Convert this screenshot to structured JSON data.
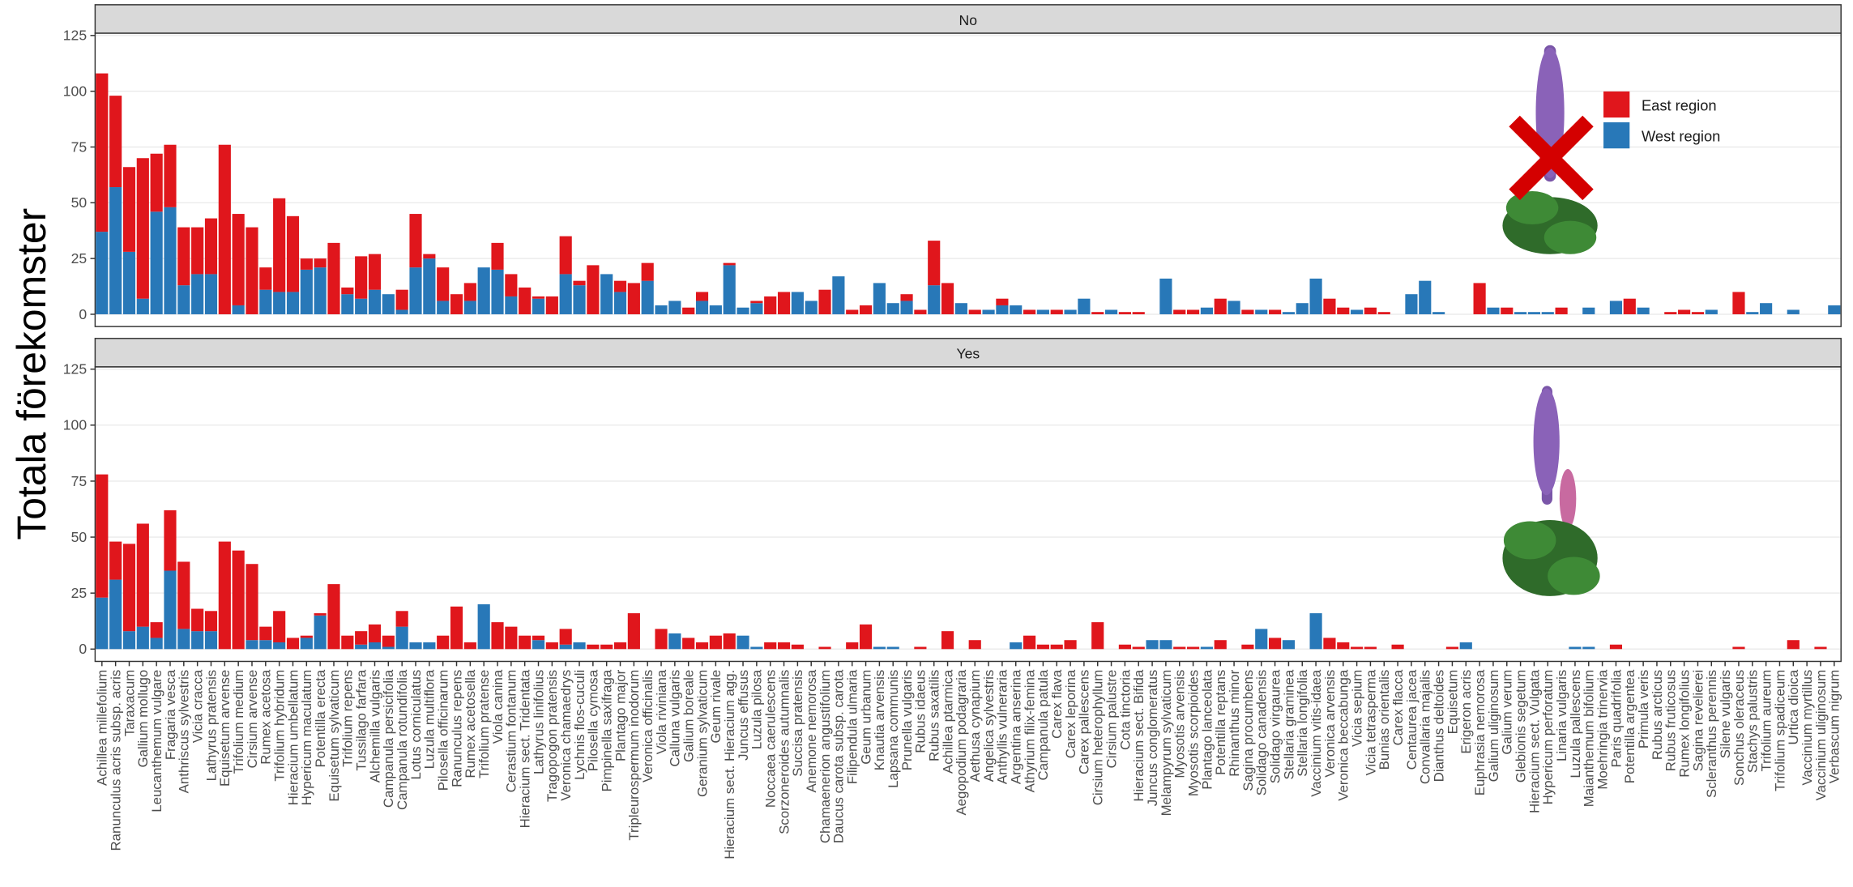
{
  "chart_data": {
    "type": "bar",
    "stacked": true,
    "y_label": "Totala förekomster",
    "categories": [
      "Achillea millefolium",
      "Ranunculus acris subsp. acris",
      "Taraxacum",
      "Gallium mollugo",
      "Leucanthemum vulgare",
      "Fragaria vesca",
      "Anthriscus sylvestris",
      "Vicia cracca",
      "Lathyrus pratensis",
      "Equisetum arvense",
      "Trifolium medium",
      "Cirsium arvense",
      "Rumex acetosa",
      "Trifolium hybridum",
      "Hieracium umbellatum",
      "Hypericum maculatum",
      "Potentilla erecta",
      "Equisetum sylvaticum",
      "Trifolium repens",
      "Tussilago farfara",
      "Alchemilla vulgaris",
      "Campanula persicifolia",
      "Campanula rotundifolia",
      "Lotus corniculatus",
      "Luzula multiflora",
      "Pilosella officinarum",
      "Ranunculus repens",
      "Rumex acetosella",
      "Trifolium pratense",
      "Viola canina",
      "Cerastium fontanum",
      "Hieracium sect. Tridentata",
      "Lathyrus linifolius",
      "Tragopogon pratensis",
      "Veronica chamaedrys",
      "Lychnis flos-cuculi",
      "Pilosella cymosa",
      "Pimpinella saxifraga",
      "Plantago major",
      "Tripleurospermum inodorum",
      "Veronica officinalis",
      "Viola riviniana",
      "Calluna vulgaris",
      "Galium boreale",
      "Geranium sylvaticum",
      "Geum rivale",
      "Hieracium sect. Hieracium agg.",
      "Juncus effusus",
      "Luzula pilosa",
      "Noccaea caerulescens",
      "Scorzoneroides autumnalis",
      "Succisa pratensis",
      "Anemone nemorosa",
      "Chamaenerion angustifolium",
      "Daucus carota subsp. carota",
      "Filipendula ulmaria",
      "Geum urbanum",
      "Knautia arvensis",
      "Lapsana communis",
      "Prunella vulgaris",
      "Rubus idaeus",
      "Rubus saxatilis",
      "Achillea ptarmica",
      "Aegopodium podagraria",
      "Aethusa cynapium",
      "Angelica sylvestris",
      "Anthyllis vulneraria",
      "Argentina anserina",
      "Athyrium filix-femina",
      "Campanula patula",
      "Carex flava",
      "Carex leporina",
      "Carex pallescens",
      "Cirsium heterophyllum",
      "Cirsium palustre",
      "Cota tinctoria",
      "Hieracium sect. Bifida",
      "Juncus conglomeratus",
      "Melampyrum sylvaticum",
      "Myosotis arvensis",
      "Myosotis scorpioides",
      "Plantago lanceolata",
      "Potentilla reptans",
      "Rhinanthus minor",
      "Sagina procumbens",
      "Solidago canadensis",
      "Solidago virgaurea",
      "Stellaria graminea",
      "Stellaria longifolia",
      "Vaccinium vitis-idaea",
      "Veronica arvensis",
      "Veronica beccabunga",
      "Vicia sepium",
      "Vicia tetrasperma",
      "Bunias orientalis",
      "Carex flacca",
      "Centaurea jacea",
      "Convallaria majalis",
      "Dianthus deltoides",
      "Equisetum",
      "Erigeron acris",
      "Euphrasia nemorosa",
      "Galium uliginosum",
      "Galium verum",
      "Glebionis segetum",
      "Hieracium sect. Vulgata",
      "Hypericum perforatum",
      "Linaria vulgaris",
      "Luzula pallescens",
      "Maianthemum bifolium",
      "Moehringia trinervia",
      "Paris quadrifolia",
      "Potentilla argentea",
      "Primula veris",
      "Rubus arcticus",
      "Rubus fruticosus",
      "Rumex longifolius",
      "Sagina revelierei",
      "Scleranthus perennis",
      "Silene vulgaris",
      "Sonchus oleraceus",
      "Stachys palustris",
      "Trifolium aureum",
      "Trifolium spadiceum",
      "Urtica dioica",
      "Vaccinium myrtillus",
      "Vaccinium uliginosum",
      "Verbascum nigrum"
    ],
    "ylim": [
      -5.5,
      126
    ],
    "yticks": [
      0,
      25,
      50,
      75,
      100,
      125
    ],
    "grid": true,
    "legend": "right",
    "series": [
      {
        "name": "East region",
        "color": "#e0161c"
      },
      {
        "name": "West region",
        "color": "#2878b8"
      }
    ],
    "facets": [
      {
        "title": "No",
        "values": [
          [
            71,
            41,
            38,
            63,
            26,
            28,
            26,
            21,
            25,
            76,
            41,
            39,
            10,
            42,
            34,
            5,
            4,
            32,
            3,
            19,
            16,
            0,
            9,
            24,
            2,
            15,
            9,
            8,
            0,
            12,
            10,
            12,
            1,
            8,
            17,
            2,
            22,
            0,
            5,
            14,
            8,
            0,
            0,
            3,
            4,
            0,
            1,
            0,
            1,
            8,
            10,
            0,
            0,
            11,
            0,
            2,
            4,
            0,
            0,
            3,
            2,
            20,
            14,
            0,
            2,
            0,
            3,
            0,
            2,
            0,
            2,
            0,
            0,
            1,
            0,
            1,
            1,
            0,
            0,
            2,
            2,
            0,
            7,
            0,
            2,
            0,
            2,
            0,
            0,
            0,
            7,
            3,
            0,
            3,
            1,
            0,
            0,
            0,
            0,
            0,
            0,
            14,
            0,
            3,
            0,
            0,
            0,
            3,
            0,
            0,
            0,
            0,
            7,
            0,
            0,
            1,
            2,
            1,
            0,
            0,
            10,
            0,
            0,
            0,
            0,
            0,
            0,
            0
          ],
          [
            37,
            57,
            28,
            7,
            46,
            48,
            13,
            18,
            18,
            0,
            4,
            0,
            11,
            10,
            10,
            20,
            21,
            0,
            9,
            7,
            11,
            9,
            2,
            21,
            25,
            6,
            0,
            6,
            21,
            20,
            8,
            0,
            7,
            0,
            18,
            13,
            0,
            18,
            10,
            0,
            15,
            4,
            6,
            0,
            6,
            4,
            22,
            3,
            5,
            0,
            0,
            10,
            6,
            0,
            17,
            0,
            0,
            14,
            5,
            6,
            0,
            13,
            0,
            5,
            0,
            2,
            4,
            4,
            0,
            2,
            0,
            2,
            7,
            0,
            2,
            0,
            0,
            0,
            16,
            0,
            0,
            3,
            0,
            6,
            0,
            2,
            0,
            1,
            5,
            16,
            0,
            0,
            2,
            0,
            0,
            0,
            9,
            15,
            1,
            0,
            0,
            0,
            3,
            0,
            1,
            1,
            1,
            0,
            0,
            3,
            0,
            6,
            0,
            3,
            0,
            0,
            0,
            0,
            2,
            0,
            0,
            1,
            5,
            0,
            2,
            0,
            0,
            4
          ]
        ]
      },
      {
        "title": "Yes",
        "values": [
          [
            55,
            17,
            39,
            46,
            7,
            27,
            30,
            10,
            9,
            48,
            44,
            34,
            6,
            14,
            5,
            1,
            1,
            29,
            6,
            6,
            8,
            5,
            7,
            0,
            0,
            6,
            19,
            3,
            0,
            12,
            10,
            6,
            2,
            3,
            7,
            0,
            2,
            2,
            3,
            16,
            0,
            9,
            0,
            5,
            3,
            6,
            7,
            0,
            0,
            3,
            3,
            2,
            0,
            1,
            0,
            3,
            11,
            0,
            0,
            0,
            1,
            0,
            8,
            0,
            4,
            0,
            0,
            0,
            6,
            2,
            2,
            4,
            0,
            12,
            0,
            2,
            1,
            0,
            0,
            1,
            1,
            0,
            4,
            0,
            2,
            0,
            5,
            0,
            0,
            0,
            5,
            3,
            1,
            1,
            0,
            2,
            0,
            0,
            0,
            1,
            0,
            0,
            0,
            0,
            0,
            0,
            0,
            0,
            0,
            0,
            0,
            2,
            0,
            0,
            0,
            0,
            0,
            0,
            0,
            0,
            1,
            0,
            0,
            0,
            4,
            0,
            1,
            0
          ],
          [
            23,
            31,
            8,
            10,
            5,
            35,
            9,
            8,
            8,
            0,
            0,
            4,
            4,
            3,
            0,
            5,
            15,
            0,
            0,
            2,
            3,
            1,
            10,
            3,
            3,
            0,
            0,
            0,
            20,
            0,
            0,
            0,
            4,
            0,
            2,
            3,
            0,
            0,
            0,
            0,
            0,
            0,
            7,
            0,
            0,
            0,
            0,
            6,
            1,
            0,
            0,
            0,
            0,
            0,
            0,
            0,
            0,
            1,
            1,
            0,
            0,
            0,
            0,
            0,
            0,
            0,
            0,
            3,
            0,
            0,
            0,
            0,
            0,
            0,
            0,
            0,
            0,
            4,
            4,
            0,
            0,
            1,
            0,
            0,
            0,
            9,
            0,
            4,
            0,
            16,
            0,
            0,
            0,
            0,
            0,
            0,
            0,
            0,
            0,
            0,
            3,
            0,
            0,
            0,
            0,
            0,
            0,
            0,
            1,
            1,
            0,
            0,
            0,
            0,
            0,
            0,
            0,
            0,
            0,
            0,
            0,
            0,
            0,
            0,
            0,
            0,
            0,
            0
          ]
        ]
      }
    ]
  }
}
